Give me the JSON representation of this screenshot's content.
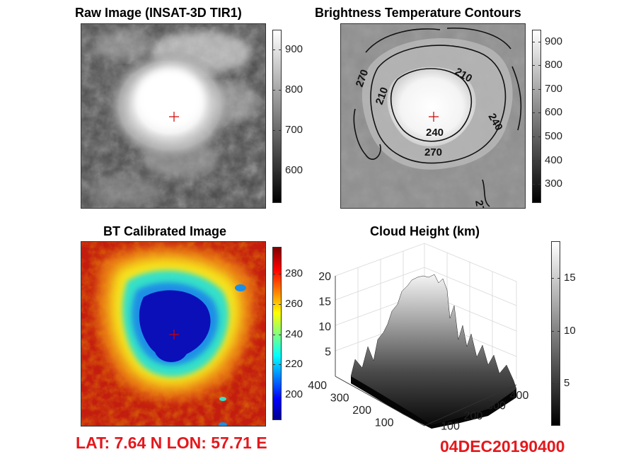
{
  "colors": {
    "accent_red": "#e4181c",
    "marker": "#d00000"
  },
  "footer": {
    "latlon": "LAT: 7.64 N  LON: 57.71 E",
    "datetime": "04DEC20190400"
  },
  "chart_data": [
    {
      "type": "heatmap",
      "title": "Raw Image (INSAT-3D TIR1)",
      "colormap": "gray",
      "colorbar": {
        "ticks": [
          600,
          700,
          800,
          900
        ],
        "clim": [
          520,
          950
        ]
      }
    },
    {
      "type": "heatmap",
      "title": "Brightness Temperature Contours",
      "colormap": "gray",
      "colorbar": {
        "ticks": [
          300,
          400,
          500,
          600,
          700,
          800,
          900
        ],
        "clim": [
          220,
          950
        ]
      },
      "contour_labels": [
        "210",
        "240",
        "270"
      ]
    },
    {
      "type": "heatmap",
      "title": "BT Calibrated Image",
      "colormap": "jet",
      "colorbar": {
        "ticks": [
          200,
          220,
          240,
          260,
          280
        ],
        "clim": [
          183,
          298
        ]
      }
    },
    {
      "type": "surface",
      "title": "Cloud Height (km)",
      "colormap": "gray",
      "z_ticks": [
        5,
        10,
        15,
        20
      ],
      "y_ticks": [
        100,
        200,
        300,
        400
      ],
      "x_ticks": [
        100,
        200,
        300,
        400
      ],
      "colorbar": {
        "ticks": [
          5,
          10,
          15
        ],
        "clim": [
          1,
          18.5
        ]
      }
    }
  ]
}
